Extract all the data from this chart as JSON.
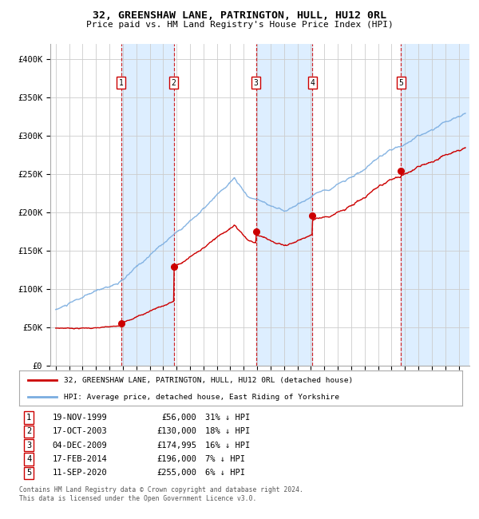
{
  "title1": "32, GREENSHAW LANE, PATRINGTON, HULL, HU12 0RL",
  "title2": "Price paid vs. HM Land Registry's House Price Index (HPI)",
  "sales": [
    {
      "num": 1,
      "date": "19-NOV-1999",
      "year": 1999.88,
      "price": 56000,
      "pct": "31% ↓ HPI"
    },
    {
      "num": 2,
      "date": "17-OCT-2003",
      "year": 2003.79,
      "price": 130000,
      "pct": "18% ↓ HPI"
    },
    {
      "num": 3,
      "date": "04-DEC-2009",
      "year": 2009.92,
      "price": 174995,
      "pct": "16% ↓ HPI"
    },
    {
      "num": 4,
      "date": "17-FEB-2014",
      "year": 2014.12,
      "price": 196000,
      "pct": "7% ↓ HPI"
    },
    {
      "num": 5,
      "date": "11-SEP-2020",
      "year": 2020.7,
      "price": 255000,
      "pct": "6% ↓ HPI"
    }
  ],
  "legend_property": "32, GREENSHAW LANE, PATRINGTON, HULL, HU12 0RL (detached house)",
  "legend_hpi": "HPI: Average price, detached house, East Riding of Yorkshire",
  "footer1": "Contains HM Land Registry data © Crown copyright and database right 2024.",
  "footer2": "This data is licensed under the Open Government Licence v3.0.",
  "ylim": [
    0,
    420000
  ],
  "yticks": [
    0,
    50000,
    100000,
    150000,
    200000,
    250000,
    300000,
    350000,
    400000
  ],
  "ytick_labels": [
    "£0",
    "£50K",
    "£100K",
    "£150K",
    "£200K",
    "£250K",
    "£300K",
    "£350K",
    "£400K"
  ],
  "property_color": "#cc0000",
  "hpi_color": "#7aade0",
  "shade_color": "#ddeeff",
  "vline_color": "#cc0000",
  "box_color": "#cc0000",
  "grid_color": "#cccccc",
  "bg_color": "#ffffff"
}
